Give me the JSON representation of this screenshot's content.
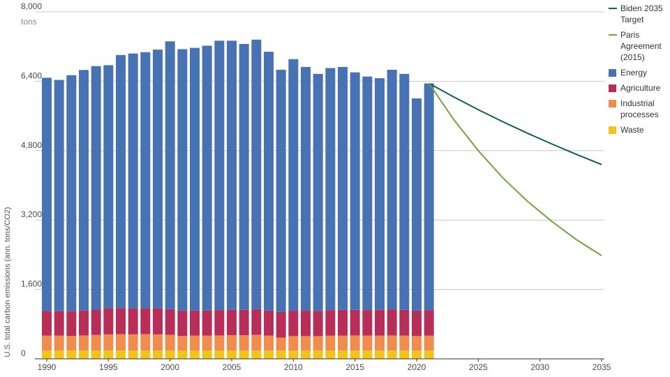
{
  "chart_data": {
    "type": "bar",
    "ylabel": "U.S. total carbon emissions (ann. tons/CO2)",
    "unit_label": "tons",
    "ylim": [
      0,
      8000
    ],
    "xlim": [
      1990,
      2035
    ],
    "y_ticks": [
      0,
      1600,
      3200,
      4800,
      6400,
      8000
    ],
    "y_tick_labels": [
      "0",
      "1,600",
      "3,200",
      "4,800",
      "6,400",
      "8,000"
    ],
    "x_ticks": [
      1990,
      1995,
      2000,
      2005,
      2010,
      2015,
      2020,
      2025,
      2030,
      2035
    ],
    "x_tick_labels": [
      "1990",
      "1995",
      "2000",
      "2005",
      "2010",
      "2015",
      "2020",
      "2025",
      "2030",
      "2035"
    ],
    "grid": "horizontal",
    "legend_position": "right",
    "stacked_series": [
      {
        "name": "Waste",
        "color": "#f2c318",
        "values": [
          190,
          190,
          190,
          190,
          190,
          190,
          190,
          190,
          190,
          190,
          190,
          190,
          190,
          190,
          190,
          190,
          190,
          190,
          190,
          190,
          190,
          190,
          190,
          190,
          190,
          190,
          190,
          190,
          190,
          190,
          190,
          190
        ]
      },
      {
        "name": "Industrial processes",
        "color": "#ee8d4d",
        "values": [
          345,
          345,
          340,
          350,
          360,
          375,
          380,
          375,
          380,
          375,
          365,
          340,
          345,
          345,
          350,
          355,
          355,
          365,
          345,
          300,
          335,
          335,
          335,
          345,
          345,
          350,
          345,
          345,
          350,
          345,
          335,
          345
        ]
      },
      {
        "name": "Agriculture",
        "color": "#b82e59",
        "values": [
          570,
          565,
          570,
          575,
          585,
          600,
          600,
          595,
          595,
          595,
          590,
          585,
          580,
          580,
          585,
          585,
          585,
          590,
          580,
          590,
          585,
          585,
          580,
          590,
          595,
          590,
          590,
          595,
          600,
          595,
          590,
          590
        ]
      },
      {
        "name": "Energy",
        "color": "#4772b4",
        "values": [
          5375,
          5330,
          5440,
          5545,
          5615,
          5605,
          5835,
          5880,
          5905,
          5970,
          6175,
          6025,
          6055,
          6105,
          6210,
          6205,
          6130,
          6215,
          5965,
          5585,
          5800,
          5620,
          5465,
          5580,
          5600,
          5475,
          5385,
          5340,
          5525,
          5440,
          4890,
          5225
        ]
      }
    ],
    "bar_x": [
      1990,
      1991,
      1992,
      1993,
      1994,
      1995,
      1996,
      1997,
      1998,
      1999,
      2000,
      2001,
      2002,
      2003,
      2004,
      2005,
      2006,
      2007,
      2008,
      2009,
      2010,
      2011,
      2012,
      2013,
      2014,
      2015,
      2016,
      2017,
      2018,
      2019,
      2020,
      2021
    ],
    "line_series": [
      {
        "name": "Biden 2035 Target",
        "color": "#0e5e5e",
        "x": [
          2021,
          2023,
          2025,
          2027,
          2029,
          2031,
          2033,
          2035
        ],
        "y": [
          6350,
          6040,
          5745,
          5465,
          5200,
          4950,
          4710,
          4480
        ]
      },
      {
        "name": "Paris Agreement (2015)",
        "color": "#72a43a",
        "x": [
          2021,
          2023,
          2025,
          2027,
          2029,
          2031,
          2033,
          2035
        ],
        "y": [
          6350,
          5520,
          4800,
          4170,
          3630,
          3160,
          2740,
          2380
        ]
      }
    ]
  },
  "legend": [
    {
      "label": "Biden 2035 Target",
      "kind": "line",
      "color": "#0e5e5e"
    },
    {
      "label": "Paris Agreement (2015)",
      "kind": "line",
      "color": "#72a43a"
    },
    {
      "label": "Energy",
      "kind": "box",
      "color": "#4772b4"
    },
    {
      "label": "Agriculture",
      "kind": "box",
      "color": "#b82e59"
    },
    {
      "label": "Industrial processes",
      "kind": "box",
      "color": "#ee8d4d"
    },
    {
      "label": "Waste",
      "kind": "box",
      "color": "#f2c318"
    }
  ]
}
